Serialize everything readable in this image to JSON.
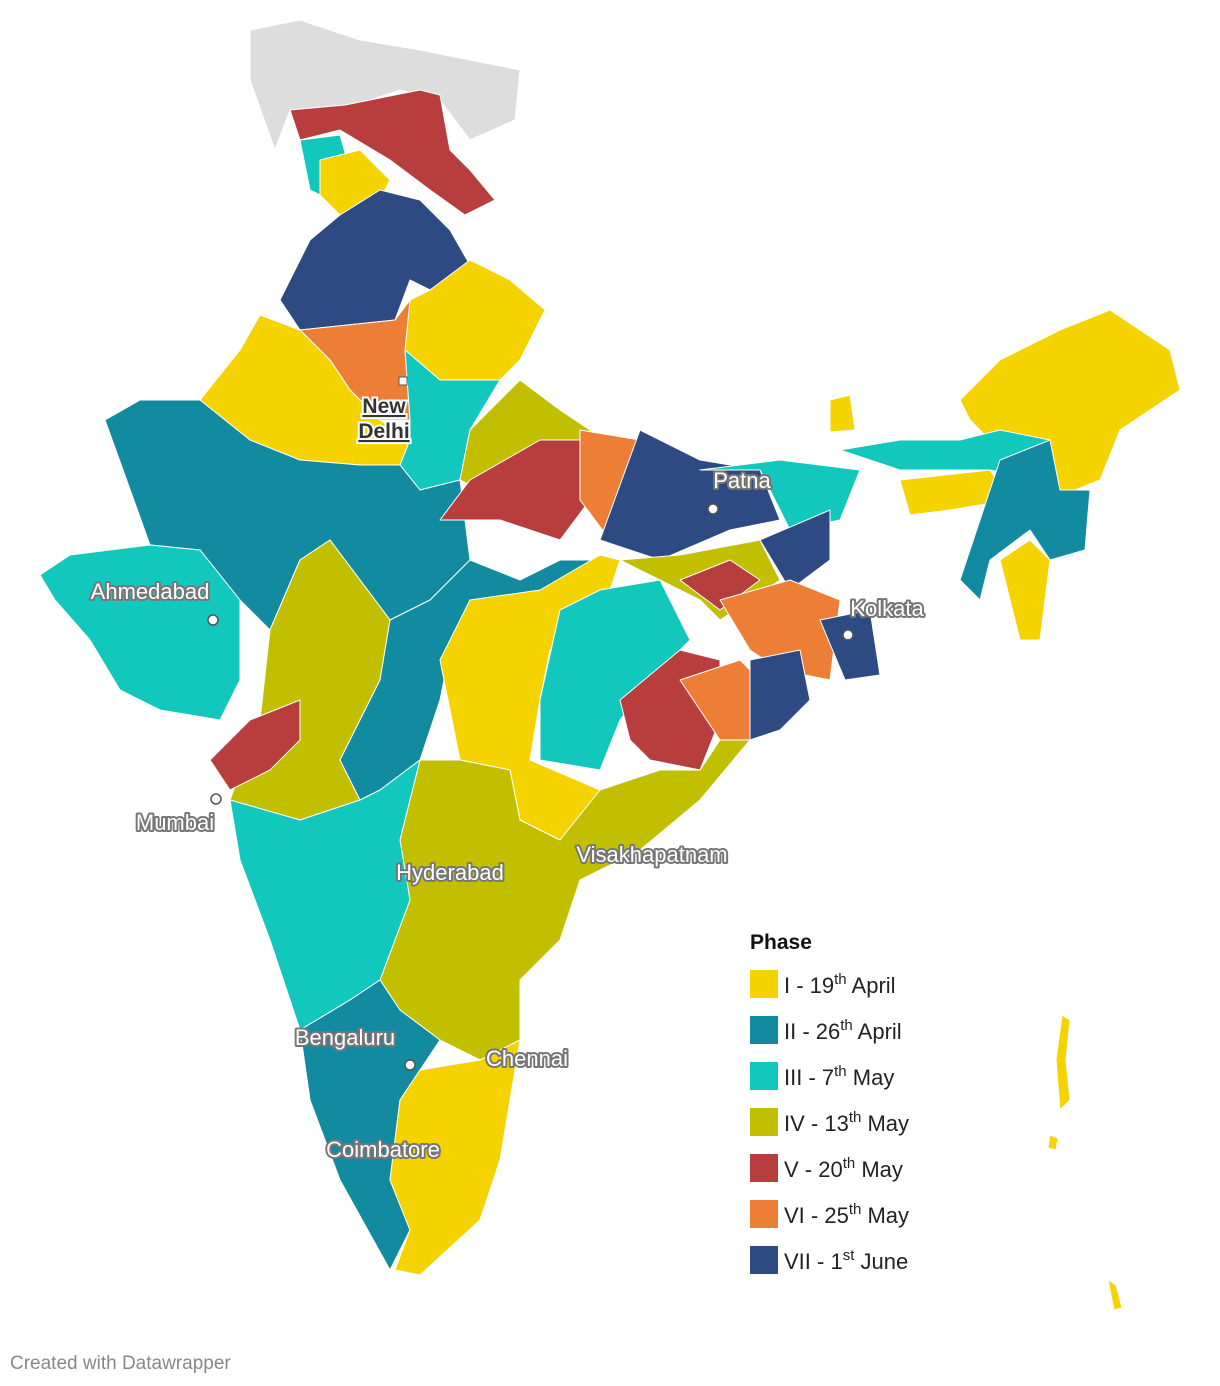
{
  "map": {
    "legend": {
      "title": "Phase",
      "items": [
        {
          "label": "I - 19",
          "sup": "th",
          "suffix": " April",
          "color": "#f5d300"
        },
        {
          "label": "II - 26",
          "sup": "th",
          "suffix": " April",
          "color": "#128ba0"
        },
        {
          "label": "III - 7",
          "sup": "th",
          "suffix": " May",
          "color": "#12c7bb"
        },
        {
          "label": "IV - 13",
          "sup": "th",
          "suffix": " May",
          "color": "#c2bf00"
        },
        {
          "label": "V - 20",
          "sup": "th",
          "suffix": " May",
          "color": "#b83d3d"
        },
        {
          "label": "VI - 25",
          "sup": "th",
          "suffix": " May",
          "color": "#ec7f35"
        },
        {
          "label": "VII - 1",
          "sup": "st",
          "suffix": " June",
          "color": "#2e4a83"
        }
      ]
    },
    "capital": {
      "lines": [
        "New",
        "Delhi"
      ]
    },
    "cities": [
      "Patna",
      "Ahmedabad",
      "Kolkata",
      "Mumbai",
      "Visakhapatnam",
      "Hyderabad",
      "Bengaluru",
      "Chennai",
      "Coimbatore"
    ],
    "footer": "Created with Datawrapper"
  }
}
